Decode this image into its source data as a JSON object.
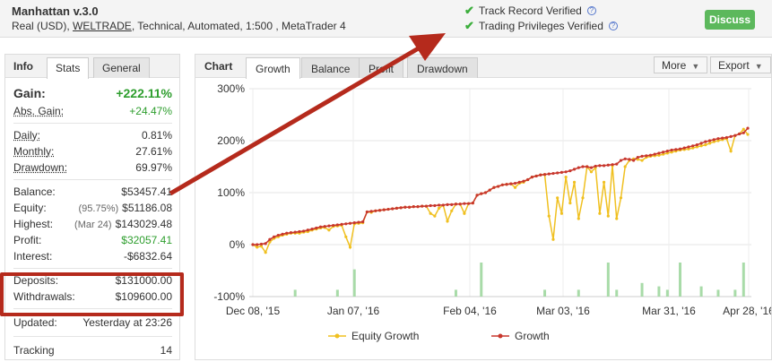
{
  "header": {
    "account_name": "Manhattan v.3.0",
    "meta_prefix": "Real (USD), ",
    "broker": "WELTRADE",
    "meta_suffix": ", Technical, Automated, 1:500 , MetaTrader 4",
    "verified": [
      "Track Record Verified",
      "Trading Privileges Verified"
    ],
    "discuss_label": "Discuss"
  },
  "left_panel": {
    "title": "Info",
    "tabs": [
      "Stats",
      "General"
    ],
    "active_tab": "Stats",
    "gain_label": "Gain:",
    "gain_value": "+222.11%",
    "abs_gain_label": "Abs. Gain:",
    "abs_gain_value": "+24.47%",
    "daily_label": "Daily:",
    "daily_value": "0.81%",
    "monthly_label": "Monthly:",
    "monthly_value": "27.61%",
    "drawdown_label": "Drawdown:",
    "drawdown_value": "69.97%",
    "balance_label": "Balance:",
    "balance_value": "$53457.41",
    "equity_label": "Equity:",
    "equity_sub": "(95.75%)",
    "equity_value": "$51186.08",
    "highest_label": "Highest:",
    "highest_sub": "(Mar 24)",
    "highest_value": "$143029.48",
    "profit_label": "Profit:",
    "profit_value": "$32057.41",
    "interest_label": "Interest:",
    "interest_value": "-$6832.64",
    "deposits_label": "Deposits:",
    "deposits_value": "$131000.00",
    "withdrawals_label": "Withdrawals:",
    "withdrawals_value": "$109600.00",
    "updated_label": "Updated:",
    "updated_value": "Yesterday at 23:26",
    "tracking_label": "Tracking",
    "tracking_value": "14"
  },
  "chart_panel": {
    "title": "Chart",
    "tabs": [
      "Growth",
      "Balance",
      "Profit",
      "Drawdown"
    ],
    "active_tab": "Growth",
    "more_label": "More",
    "export_label": "Export"
  },
  "colors": {
    "growth": "#c8372d",
    "equity": "#f0c020",
    "volume": "#a8dba8",
    "accent_green": "#2e9e2e",
    "annotation_red": "#b52a1c"
  },
  "chart_data": {
    "type": "line",
    "x_ticks": [
      "Dec 08, '15",
      "Jan 07, '16",
      "Feb 04, '16",
      "Mar 03, '16",
      "Mar 31, '16",
      "Apr 28, '16"
    ],
    "y_ticks": [
      "300%",
      "200%",
      "100%",
      "0%",
      "-100%"
    ],
    "ylim": [
      -100,
      300
    ],
    "legend": [
      "Equity Growth",
      "Growth"
    ],
    "legend_position": "bottom",
    "series": [
      {
        "name": "Growth",
        "values": [
          0,
          0,
          1,
          2,
          10,
          15,
          18,
          20,
          22,
          23,
          24,
          25,
          26,
          28,
          30,
          32,
          34,
          35,
          36,
          37,
          38,
          39,
          40,
          41,
          42,
          43,
          44,
          63,
          64,
          65,
          66,
          67,
          68,
          69,
          70,
          71,
          72,
          72,
          73,
          73,
          74,
          74,
          75,
          75,
          76,
          76,
          77,
          77,
          78,
          78,
          79,
          79,
          80,
          95,
          98,
          100,
          105,
          110,
          112,
          115,
          116,
          117,
          118,
          120,
          122,
          125,
          130,
          132,
          134,
          135,
          136,
          137,
          138,
          139,
          140,
          142,
          145,
          148,
          150,
          150,
          148,
          151,
          152,
          152,
          153,
          154,
          155,
          162,
          165,
          164,
          162,
          168,
          170,
          171,
          172,
          174,
          176,
          178,
          180,
          182,
          183,
          184,
          186,
          188,
          190,
          192,
          195,
          198,
          200,
          202,
          204,
          205,
          206,
          208,
          210,
          213,
          215,
          224
        ]
      },
      {
        "name": "Equity Growth",
        "values": [
          0,
          -5,
          -3,
          -15,
          5,
          12,
          15,
          18,
          20,
          22,
          22,
          22,
          24,
          25,
          28,
          30,
          32,
          33,
          28,
          35,
          36,
          37,
          15,
          -5,
          40,
          41,
          42,
          63,
          62,
          65,
          66,
          67,
          68,
          69,
          70,
          71,
          72,
          72,
          73,
          73,
          74,
          74,
          60,
          55,
          70,
          76,
          45,
          65,
          78,
          78,
          60,
          79,
          80,
          95,
          98,
          100,
          105,
          110,
          112,
          115,
          116,
          117,
          110,
          118,
          120,
          125,
          130,
          132,
          134,
          135,
          55,
          10,
          90,
          60,
          130,
          80,
          120,
          50,
          90,
          150,
          140,
          148,
          60,
          120,
          55,
          152,
          50,
          90,
          150,
          162,
          165,
          164,
          162,
          168,
          170,
          171,
          172,
          174,
          176,
          178,
          180,
          182,
          183,
          184,
          186,
          188,
          190,
          192,
          195,
          198,
          200,
          202,
          204,
          180,
          210,
          213,
          222,
          212
        ]
      },
      {
        "name": "volume",
        "values": [
          0,
          0,
          0,
          0,
          0,
          0,
          0,
          0,
          0,
          0,
          2,
          0,
          0,
          0,
          0,
          0,
          0,
          0,
          0,
          0,
          2,
          0,
          0,
          0,
          8,
          0,
          0,
          0,
          0,
          0,
          0,
          0,
          0,
          0,
          0,
          0,
          0,
          0,
          0,
          0,
          0,
          0,
          0,
          0,
          0,
          0,
          0,
          0,
          2,
          0,
          0,
          0,
          0,
          0,
          10,
          0,
          0,
          0,
          0,
          0,
          0,
          0,
          0,
          0,
          0,
          0,
          0,
          0,
          0,
          2,
          0,
          0,
          0,
          0,
          0,
          0,
          0,
          2,
          0,
          0,
          0,
          0,
          0,
          0,
          10,
          0,
          2,
          0,
          0,
          0,
          0,
          0,
          4,
          0,
          0,
          0,
          3,
          0,
          2,
          0,
          0,
          10,
          0,
          0,
          0,
          0,
          3,
          0,
          0,
          0,
          2,
          0,
          0,
          0,
          2,
          0,
          10,
          0
        ]
      }
    ]
  }
}
